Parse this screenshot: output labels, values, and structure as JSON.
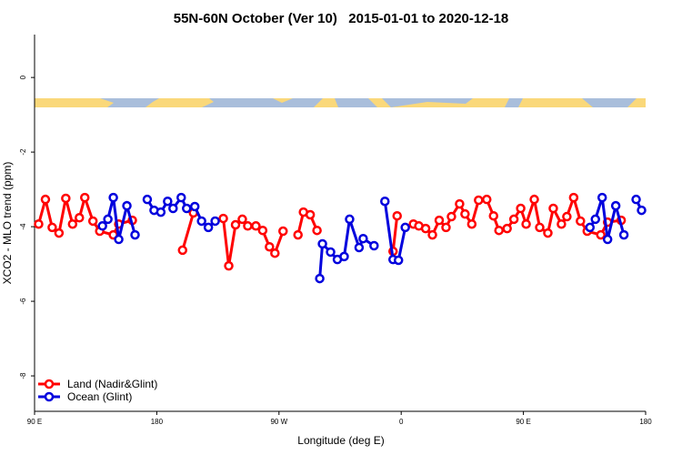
{
  "chart_data": {
    "type": "line",
    "title": "55N-60N October (Ver 10)   2015-01-01 to 2020-12-18",
    "x_label": "Longitude (deg E)",
    "y_label": "XCO2 - MLO trend (ppm)",
    "xlim": [
      90,
      540
    ],
    "xticks": [
      {
        "value": 90,
        "label": "90 E"
      },
      {
        "value": 180,
        "label": "180"
      },
      {
        "value": 270,
        "label": "90 W"
      },
      {
        "value": 360,
        "label": "0"
      },
      {
        "value": 450,
        "label": "90 E"
      },
      {
        "value": 540,
        "label": "180"
      }
    ],
    "ylim": [
      -8.95,
      1.15
    ],
    "yticks": [
      0,
      -2,
      -4,
      -6,
      -8
    ],
    "legend": "bottom-left",
    "series": [
      {
        "name": "Land (Nadir&Glint)",
        "color": "#ff0000",
        "x": [
          93,
          98,
          103,
          108,
          113,
          118,
          123,
          127,
          133,
          138,
          148,
          152,
          162,
          null,
          199,
          207,
          null,
          229,
          233,
          238,
          243,
          247,
          253,
          258,
          263,
          267,
          273,
          null,
          284,
          288,
          293,
          298,
          null,
          354,
          357,
          null,
          369,
          373,
          378,
          383,
          388,
          393,
          397,
          403,
          407,
          412,
          417,
          423,
          428,
          432,
          438,
          443,
          448,
          452,
          458,
          462,
          468,
          472,
          478,
          482,
          487,
          492,
          497,
          507,
          512,
          522
        ],
        "values": [
          -3.93,
          -3.27,
          -4.02,
          -4.17,
          -3.24,
          -3.93,
          -3.76,
          -3.22,
          -3.85,
          -4.12,
          -4.22,
          -3.93,
          -3.83,
          null,
          -4.63,
          -3.63,
          null,
          -3.78,
          -5.05,
          -3.95,
          -3.8,
          -3.98,
          -3.98,
          -4.1,
          -4.54,
          -4.71,
          -4.12,
          null,
          -4.22,
          -3.61,
          -3.68,
          -4.1,
          null,
          -4.66,
          -3.71,
          null,
          -3.93,
          -3.98,
          -4.05,
          -4.22,
          -3.83,
          -4.02,
          -3.73,
          -3.39,
          -3.66,
          -3.93,
          -3.29,
          -3.27,
          -3.71,
          -4.1,
          -4.05,
          -3.8,
          -3.51,
          -3.93,
          -3.27,
          -4.02,
          -4.17,
          -3.51,
          -3.93,
          -3.73,
          -3.22,
          -3.85,
          -4.12,
          -4.22,
          -3.88,
          -3.83
        ]
      },
      {
        "name": "Ocean (Glint)",
        "color": "#0000dd",
        "x": [
          140,
          144,
          148,
          152,
          158,
          164,
          null,
          173,
          178,
          183,
          188,
          192,
          198,
          202,
          208,
          213,
          218,
          223,
          null,
          300,
          302,
          308,
          313,
          318,
          322,
          329,
          332,
          340,
          null,
          348,
          354,
          358,
          363,
          null,
          499,
          503,
          508,
          512,
          518,
          524,
          null,
          533,
          537
        ],
        "values": [
          -3.98,
          -3.8,
          -3.22,
          -4.34,
          -3.44,
          -4.22,
          null,
          -3.27,
          -3.56,
          -3.61,
          -3.32,
          -3.51,
          -3.22,
          -3.51,
          -3.46,
          -3.85,
          -4.02,
          -3.85,
          null,
          -5.39,
          -4.46,
          -4.68,
          -4.88,
          -4.8,
          -3.8,
          -4.56,
          -4.32,
          -4.51,
          null,
          -3.32,
          -4.88,
          -4.9,
          -4.02,
          null,
          -4.02,
          -3.8,
          -3.22,
          -4.34,
          -3.44,
          -4.22,
          null,
          -3.27,
          -3.56
        ]
      }
    ]
  }
}
